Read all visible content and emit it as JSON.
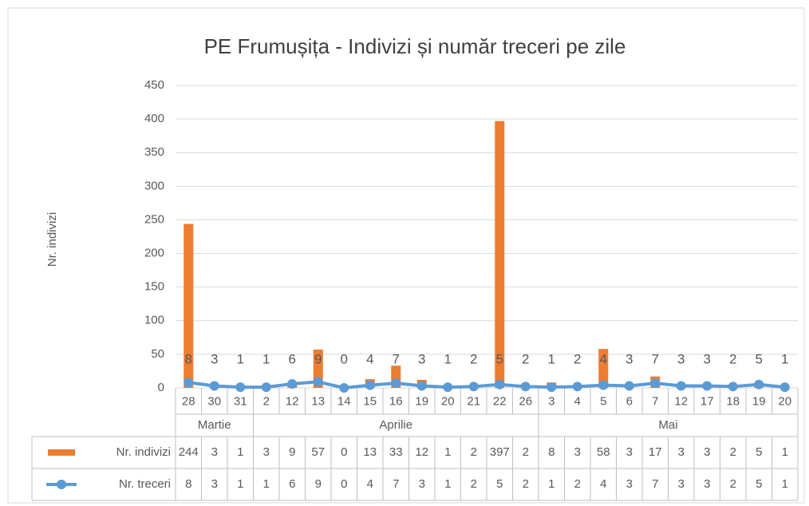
{
  "chart_data": {
    "type": "bar-line",
    "title": "PE Frumușița - Indivizi și număr treceri pe zile",
    "y_label": "Nr. indivizi",
    "category_groups": [
      {
        "name": "Martie",
        "categories": [
          "28",
          "30",
          "31"
        ]
      },
      {
        "name": "Aprilie",
        "categories": [
          "2",
          "12",
          "13",
          "14",
          "15",
          "16",
          "19",
          "20",
          "21",
          "22",
          "26"
        ]
      },
      {
        "name": "Mai",
        "categories": [
          "3",
          "4",
          "5",
          "6",
          "7",
          "12",
          "17",
          "18",
          "19",
          "20"
        ]
      }
    ],
    "series": [
      {
        "name": "Nr. indivizi",
        "type": "bar",
        "color": "#ed7d31",
        "values": [
          244,
          3,
          1,
          3,
          9,
          57,
          0,
          13,
          33,
          12,
          1,
          2,
          397,
          2,
          8,
          3,
          58,
          3,
          17,
          3,
          3,
          2,
          5,
          1
        ]
      },
      {
        "name": "Nr. treceri",
        "type": "line",
        "color": "#5b9bd5",
        "values": [
          8,
          3,
          1,
          1,
          6,
          9,
          0,
          4,
          7,
          3,
          1,
          2,
          5,
          2,
          1,
          2,
          4,
          3,
          7,
          3,
          3,
          2,
          5,
          1
        ]
      }
    ],
    "ylim": [
      0,
      450
    ],
    "yticks": [
      0,
      50,
      100,
      150,
      200,
      250,
      300,
      350,
      400,
      450
    ],
    "grid": true
  }
}
